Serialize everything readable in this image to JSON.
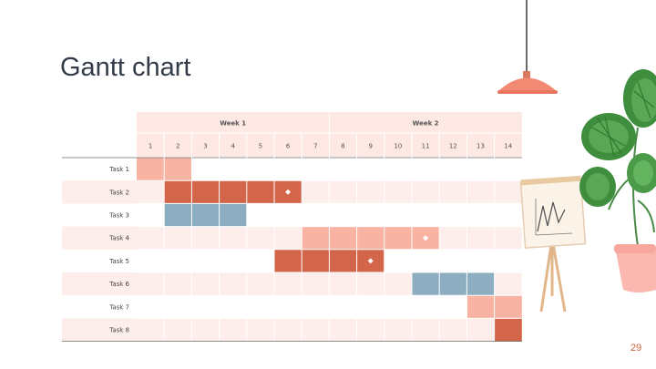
{
  "slide": {
    "title": "Gantt chart",
    "page_number": "29"
  },
  "colors": {
    "header_bg": "#fde8e4",
    "stripe_bg": "#fdeeeb",
    "light_salmon": "#f8b3a3",
    "dark_coral": "#d3654a",
    "steel_blue": "#8daec0",
    "lamp": "#f28a74",
    "title": "#333b48"
  },
  "gantt": {
    "weeks": [
      {
        "label": "Week 1",
        "days": [
          1,
          2,
          3,
          4,
          5,
          6,
          7
        ]
      },
      {
        "label": "Week 2",
        "days": [
          8,
          9,
          10,
          11,
          12,
          13,
          14
        ]
      }
    ],
    "days": [
      "1",
      "2",
      "3",
      "4",
      "5",
      "6",
      "7",
      "8",
      "9",
      "10",
      "11",
      "12",
      "13",
      "14"
    ],
    "tasks": [
      {
        "label": "Task 1",
        "start": 1,
        "end": 2,
        "color": "light_salmon",
        "milestone": null
      },
      {
        "label": "Task 2",
        "start": 2,
        "end": 6,
        "color": "dark_coral",
        "milestone": 6
      },
      {
        "label": "Task 3",
        "start": 2,
        "end": 4,
        "color": "steel_blue",
        "milestone": null
      },
      {
        "label": "Task 4",
        "start": 7,
        "end": 11,
        "color": "light_salmon",
        "milestone": 11
      },
      {
        "label": "Task 5",
        "start": 6,
        "end": 9,
        "color": "dark_coral",
        "milestone": 9
      },
      {
        "label": "Task 6",
        "start": 11,
        "end": 13,
        "color": "steel_blue",
        "milestone": null
      },
      {
        "label": "Task 7",
        "start": 13,
        "end": 14,
        "color": "light_salmon",
        "milestone": null
      },
      {
        "label": "Task 8",
        "start": 14,
        "end": 14,
        "color": "dark_coral",
        "milestone": null
      }
    ]
  },
  "decorations": [
    "hanging-lamp",
    "flip-chart-easel",
    "potted-monstera-plant"
  ]
}
